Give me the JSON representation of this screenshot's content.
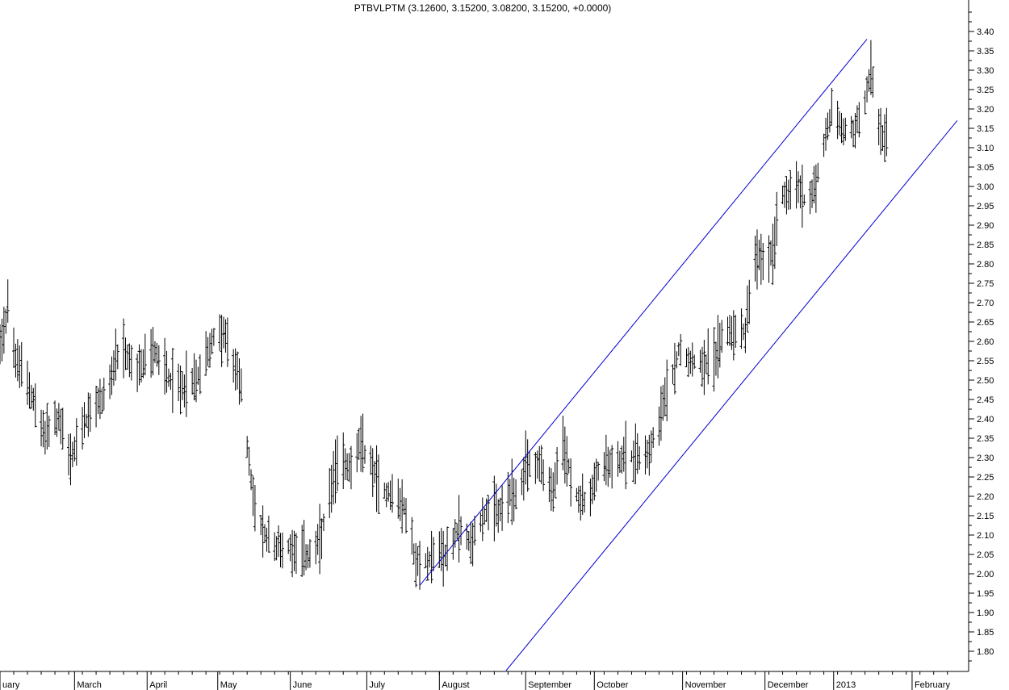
{
  "chart_data": {
    "type": "ohlc",
    "title": "PTBVLPTM (3.12600, 3.15200, 3.08200, 3.15200, +0.0000)",
    "ylim": [
      1.75,
      3.45
    ],
    "y_ticks": [
      "1.80",
      "1.85",
      "1.90",
      "1.95",
      "2.00",
      "2.05",
      "2.10",
      "2.15",
      "2.20",
      "2.25",
      "2.30",
      "2.35",
      "2.40",
      "2.45",
      "2.50",
      "2.55",
      "2.60",
      "2.65",
      "2.70",
      "2.75",
      "2.80",
      "2.85",
      "2.90",
      "2.95",
      "3.00",
      "3.05",
      "3.10",
      "3.15",
      "3.20",
      "3.25",
      "3.30",
      "3.35",
      "3.40"
    ],
    "x_labels": [
      {
        "label": "uary",
        "day": 0
      },
      {
        "label": "March",
        "day": 38
      },
      {
        "label": "April",
        "day": 75
      },
      {
        "label": "May",
        "day": 111
      },
      {
        "label": "June",
        "day": 148
      },
      {
        "label": "July",
        "day": 187
      },
      {
        "label": "August",
        "day": 224
      },
      {
        "label": "September",
        "day": 268
      },
      {
        "label": "October",
        "day": 303
      },
      {
        "label": "November",
        "day": 348
      },
      {
        "label": "December",
        "day": 390
      },
      {
        "label": "2013",
        "day": 425
      },
      {
        "label": "February",
        "day": 465
      }
    ],
    "x_range_days": [
      0,
      488
    ],
    "anchors": [
      [
        0,
        2.6
      ],
      [
        4,
        2.68
      ],
      [
        8,
        2.55
      ],
      [
        14,
        2.5
      ],
      [
        22,
        2.36
      ],
      [
        30,
        2.4
      ],
      [
        36,
        2.29
      ],
      [
        42,
        2.38
      ],
      [
        54,
        2.47
      ],
      [
        62,
        2.58
      ],
      [
        70,
        2.52
      ],
      [
        78,
        2.58
      ],
      [
        90,
        2.48
      ],
      [
        100,
        2.5
      ],
      [
        108,
        2.6
      ],
      [
        114,
        2.62
      ],
      [
        118,
        2.55
      ],
      [
        123,
        2.5
      ],
      [
        126,
        2.32
      ],
      [
        129,
        2.2
      ],
      [
        134,
        2.1
      ],
      [
        142,
        2.07
      ],
      [
        150,
        2.07
      ],
      [
        156,
        2.05
      ],
      [
        160,
        2.05
      ],
      [
        164,
        2.1
      ],
      [
        168,
        2.2
      ],
      [
        173,
        2.3
      ],
      [
        178,
        2.28
      ],
      [
        184,
        2.33
      ],
      [
        188,
        2.3
      ],
      [
        194,
        2.22
      ],
      [
        202,
        2.2
      ],
      [
        208,
        2.15
      ],
      [
        212,
        2.02
      ],
      [
        217,
        2.03
      ],
      [
        222,
        2.06
      ],
      [
        228,
        2.05
      ],
      [
        234,
        2.12
      ],
      [
        240,
        2.08
      ],
      [
        246,
        2.15
      ],
      [
        254,
        2.16
      ],
      [
        260,
        2.2
      ],
      [
        265,
        2.21
      ],
      [
        270,
        2.29
      ],
      [
        276,
        2.28
      ],
      [
        282,
        2.2
      ],
      [
        286,
        2.34
      ],
      [
        290,
        2.28
      ],
      [
        294,
        2.2
      ],
      [
        300,
        2.18
      ],
      [
        306,
        2.28
      ],
      [
        318,
        2.3
      ],
      [
        330,
        2.31
      ],
      [
        336,
        2.4
      ],
      [
        342,
        2.5
      ],
      [
        346,
        2.58
      ],
      [
        354,
        2.55
      ],
      [
        364,
        2.55
      ],
      [
        368,
        2.62
      ],
      [
        376,
        2.63
      ],
      [
        380,
        2.63
      ],
      [
        384,
        2.8
      ],
      [
        390,
        2.82
      ],
      [
        394,
        2.83
      ],
      [
        398,
        2.98
      ],
      [
        406,
        3.0
      ],
      [
        412,
        2.95
      ],
      [
        418,
        3.05
      ],
      [
        424,
        3.2
      ],
      [
        430,
        3.14
      ],
      [
        436,
        3.15
      ],
      [
        440,
        3.2
      ],
      [
        444,
        3.3
      ],
      [
        448,
        3.15
      ],
      [
        452,
        3.12
      ]
    ],
    "spikes": [
      {
        "day": 4,
        "high": 2.76
      },
      {
        "day": 112,
        "high": 2.67
      },
      {
        "day": 268,
        "high": 2.37
      },
      {
        "day": 286,
        "high": 2.4
      },
      {
        "day": 383,
        "high": 3.0
      },
      {
        "day": 398,
        "high": 3.3
      },
      {
        "day": 446,
        "high": 3.35
      }
    ],
    "trend_lines": [
      {
        "name": "upper",
        "start": {
          "day": 214,
          "price": 1.97
        },
        "end": {
          "day": 442,
          "price": 3.38
        }
      },
      {
        "name": "lower",
        "start": {
          "day": 258,
          "price": 1.75
        },
        "end": {
          "day": 488,
          "price": 3.17
        }
      }
    ],
    "colors": {
      "bars": "#000000",
      "trend_line": "#0000cc",
      "axis": "#000000",
      "background": "#ffffff"
    },
    "grid": false
  }
}
